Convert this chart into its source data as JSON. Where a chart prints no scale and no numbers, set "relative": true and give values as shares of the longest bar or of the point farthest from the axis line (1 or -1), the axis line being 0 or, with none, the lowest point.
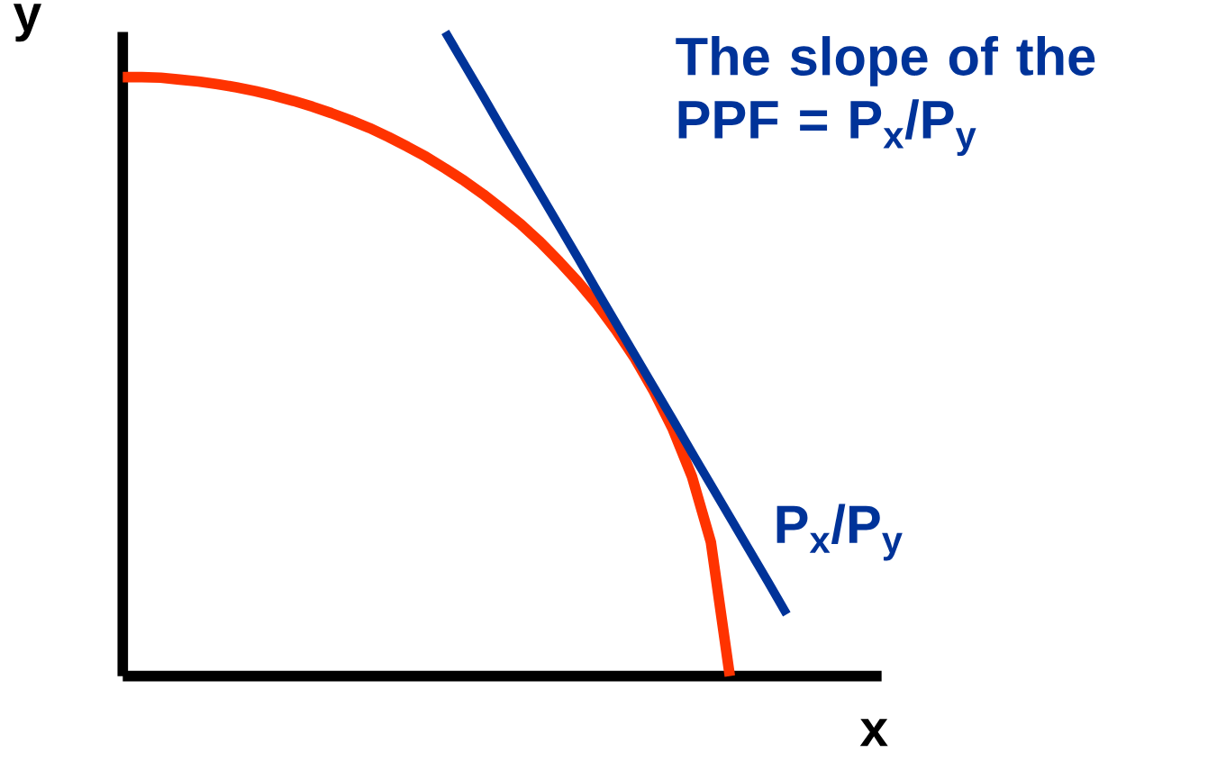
{
  "chart_data": {
    "type": "line",
    "relative": true,
    "xlabel": "x",
    "ylabel": "y",
    "marker": "none",
    "line_style": "solid",
    "annotations": [
      "The slope of the PPF = P$_{x}$/P$_{y}$",
      "P$_{x}$/P$_{y}$"
    ],
    "categories": [
      null,
      null,
      null,
      null,
      null,
      null,
      null,
      null,
      null,
      null,
      null,
      null,
      null,
      null,
      null,
      null,
      null,
      null,
      null,
      null,
      null,
      null,
      null,
      null,
      null,
      null,
      null,
      null,
      null,
      null,
      null,
      null,
      null,
      null,
      null,
      null
    ],
    "series": [
      {
        "color": "#ff3300",
        "values": [
          0.93,
          0.93,
          0.929,
          0.926,
          0.923,
          0.919,
          0.914,
          0.908,
          0.901,
          0.893,
          0.884,
          0.874,
          0.863,
          0.851,
          0.837,
          0.822,
          0.806,
          0.788,
          0.769,
          0.748,
          0.725,
          0.701,
          0.674,
          0.644,
          0.612,
          0.577,
          0.537,
          0.493,
          0.442,
          0.383,
          0.31,
          0.208,
          0,
          null,
          null,
          null
        ]
      },
      {
        "color": "#003399",
        "values": [
          null,
          null,
          null,
          null,
          null,
          null,
          null,
          null,
          null,
          null,
          null,
          null,
          null,
          null,
          null,
          null,
          null,
          1.0,
          0.95,
          0.9,
          0.849,
          0.799,
          0.749,
          0.699,
          0.649,
          0.598,
          0.548,
          0.498,
          0.448,
          0.398,
          0.347,
          0.297,
          0.247,
          0.197,
          0.147,
          0.096
        ]
      }
    ]
  }
}
